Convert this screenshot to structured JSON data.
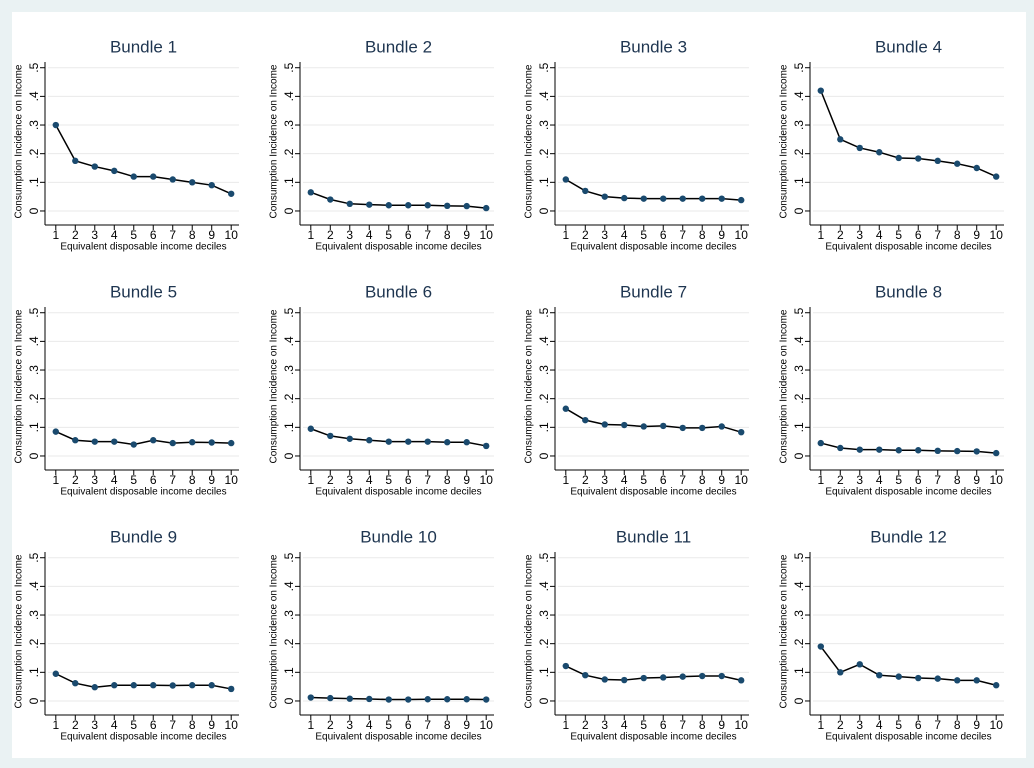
{
  "chart_data": [
    {
      "type": "line",
      "title": "Bundle 1",
      "y_label": "Consumption Incidence on Income",
      "x_label": "Equivalent disposable income deciles",
      "x": [
        1,
        2,
        3,
        4,
        5,
        6,
        7,
        8,
        9,
        10
      ],
      "xlim": [
        0.6,
        10.4
      ],
      "ylim": [
        -0.035,
        0.52
      ],
      "yticks": [
        0,
        {
          "value": 0.1,
          "label": ".1"
        },
        {
          "value": 0.2,
          "label": ".2"
        },
        {
          "value": 0.3,
          "label": ".3"
        },
        {
          "value": 0.4,
          "label": ".4"
        },
        {
          "value": 0.5,
          "label": ".5"
        }
      ],
      "grid": true,
      "color": "#1a4a6e",
      "values": [
        0.3,
        0.175,
        0.155,
        0.14,
        0.12,
        0.12,
        0.11,
        0.1,
        0.09,
        0.06
      ]
    },
    {
      "type": "line",
      "title": "Bundle 2",
      "y_label": "Consumption Incidence on Income",
      "x_label": "Equivalent disposable income deciles",
      "x": [
        1,
        2,
        3,
        4,
        5,
        6,
        7,
        8,
        9,
        10
      ],
      "xlim": [
        0.6,
        10.4
      ],
      "ylim": [
        -0.035,
        0.52
      ],
      "yticks": [
        0,
        {
          "value": 0.1,
          "label": ".1"
        },
        {
          "value": 0.2,
          "label": ".2"
        },
        {
          "value": 0.3,
          "label": ".3"
        },
        {
          "value": 0.4,
          "label": ".4"
        },
        {
          "value": 0.5,
          "label": ".5"
        }
      ],
      "grid": true,
      "color": "#1a4a6e",
      "values": [
        0.065,
        0.04,
        0.025,
        0.022,
        0.02,
        0.02,
        0.02,
        0.018,
        0.017,
        0.01
      ]
    },
    {
      "type": "line",
      "title": "Bundle 3",
      "y_label": "Consumption Incidence on Income",
      "x_label": "Equivalent disposable income deciles",
      "x": [
        1,
        2,
        3,
        4,
        5,
        6,
        7,
        8,
        9,
        10
      ],
      "xlim": [
        0.6,
        10.4
      ],
      "ylim": [
        -0.035,
        0.52
      ],
      "yticks": [
        0,
        {
          "value": 0.1,
          "label": ".1"
        },
        {
          "value": 0.2,
          "label": ".2"
        },
        {
          "value": 0.3,
          "label": ".3"
        },
        {
          "value": 0.4,
          "label": ".4"
        },
        {
          "value": 0.5,
          "label": ".5"
        }
      ],
      "grid": true,
      "color": "#1a4a6e",
      "values": [
        0.11,
        0.07,
        0.05,
        0.045,
        0.043,
        0.043,
        0.043,
        0.043,
        0.043,
        0.038
      ]
    },
    {
      "type": "line",
      "title": "Bundle 4",
      "y_label": "Consumption Incidence on Income",
      "x_label": "Equivalent disposable income deciles",
      "x": [
        1,
        2,
        3,
        4,
        5,
        6,
        7,
        8,
        9,
        10
      ],
      "xlim": [
        0.6,
        10.4
      ],
      "ylim": [
        -0.035,
        0.52
      ],
      "yticks": [
        0,
        {
          "value": 0.1,
          "label": ".1"
        },
        {
          "value": 0.2,
          "label": ".2"
        },
        {
          "value": 0.3,
          "label": ".3"
        },
        {
          "value": 0.4,
          "label": ".4"
        },
        {
          "value": 0.5,
          "label": ".5"
        }
      ],
      "grid": true,
      "color": "#1a4a6e",
      "values": [
        0.42,
        0.25,
        0.22,
        0.205,
        0.185,
        0.183,
        0.175,
        0.165,
        0.15,
        0.12
      ]
    },
    {
      "type": "line",
      "title": "Bundle 5",
      "y_label": "Consumption Incidence on Income",
      "x_label": "Equivalent disposable income deciles",
      "x": [
        1,
        2,
        3,
        4,
        5,
        6,
        7,
        8,
        9,
        10
      ],
      "xlim": [
        0.6,
        10.4
      ],
      "ylim": [
        -0.035,
        0.52
      ],
      "yticks": [
        0,
        {
          "value": 0.1,
          "label": ".1"
        },
        {
          "value": 0.2,
          "label": ".2"
        },
        {
          "value": 0.3,
          "label": ".3"
        },
        {
          "value": 0.4,
          "label": ".4"
        },
        {
          "value": 0.5,
          "label": ".5"
        }
      ],
      "grid": true,
      "color": "#1a4a6e",
      "values": [
        0.085,
        0.055,
        0.05,
        0.05,
        0.04,
        0.055,
        0.045,
        0.048,
        0.047,
        0.045
      ]
    },
    {
      "type": "line",
      "title": "Bundle 6",
      "y_label": "Consumption Incidence on Income",
      "x_label": "Equivalent disposable income deciles",
      "x": [
        1,
        2,
        3,
        4,
        5,
        6,
        7,
        8,
        9,
        10
      ],
      "xlim": [
        0.6,
        10.4
      ],
      "ylim": [
        -0.035,
        0.52
      ],
      "yticks": [
        0,
        {
          "value": 0.1,
          "label": ".1"
        },
        {
          "value": 0.2,
          "label": ".2"
        },
        {
          "value": 0.3,
          "label": ".3"
        },
        {
          "value": 0.4,
          "label": ".4"
        },
        {
          "value": 0.5,
          "label": ".5"
        }
      ],
      "grid": true,
      "color": "#1a4a6e",
      "values": [
        0.095,
        0.07,
        0.06,
        0.055,
        0.05,
        0.05,
        0.05,
        0.048,
        0.048,
        0.035
      ]
    },
    {
      "type": "line",
      "title": "Bundle 7",
      "y_label": "Consumption Incidence on Income",
      "x_label": "Equivalent disposable income deciles",
      "x": [
        1,
        2,
        3,
        4,
        5,
        6,
        7,
        8,
        9,
        10
      ],
      "xlim": [
        0.6,
        10.4
      ],
      "ylim": [
        -0.035,
        0.52
      ],
      "yticks": [
        0,
        {
          "value": 0.1,
          "label": ".1"
        },
        {
          "value": 0.2,
          "label": ".2"
        },
        {
          "value": 0.3,
          "label": ".3"
        },
        {
          "value": 0.4,
          "label": ".4"
        },
        {
          "value": 0.5,
          "label": ".5"
        }
      ],
      "grid": true,
      "color": "#1a4a6e",
      "values": [
        0.165,
        0.125,
        0.11,
        0.108,
        0.103,
        0.105,
        0.098,
        0.098,
        0.103,
        0.083
      ]
    },
    {
      "type": "line",
      "title": "Bundle 8",
      "y_label": "Consumption Incidence on Income",
      "x_label": "Equivalent disposable income deciles",
      "x": [
        1,
        2,
        3,
        4,
        5,
        6,
        7,
        8,
        9,
        10
      ],
      "xlim": [
        0.6,
        10.4
      ],
      "ylim": [
        -0.035,
        0.52
      ],
      "yticks": [
        0,
        {
          "value": 0.1,
          "label": ".1"
        },
        {
          "value": 0.2,
          "label": ".2"
        },
        {
          "value": 0.3,
          "label": ".3"
        },
        {
          "value": 0.4,
          "label": ".4"
        },
        {
          "value": 0.5,
          "label": ".5"
        }
      ],
      "grid": true,
      "color": "#1a4a6e",
      "values": [
        0.045,
        0.028,
        0.022,
        0.022,
        0.02,
        0.02,
        0.018,
        0.017,
        0.016,
        0.01
      ]
    },
    {
      "type": "line",
      "title": "Bundle 9",
      "y_label": "Consumption Incidence on Income",
      "x_label": "Equivalent disposable income deciles",
      "x": [
        1,
        2,
        3,
        4,
        5,
        6,
        7,
        8,
        9,
        10
      ],
      "xlim": [
        0.6,
        10.4
      ],
      "ylim": [
        -0.035,
        0.52
      ],
      "yticks": [
        0,
        {
          "value": 0.1,
          "label": ".1"
        },
        {
          "value": 0.2,
          "label": ".2"
        },
        {
          "value": 0.3,
          "label": ".3"
        },
        {
          "value": 0.4,
          "label": ".4"
        },
        {
          "value": 0.5,
          "label": ".5"
        }
      ],
      "grid": true,
      "color": "#1a4a6e",
      "values": [
        0.095,
        0.062,
        0.048,
        0.055,
        0.055,
        0.055,
        0.054,
        0.055,
        0.055,
        0.042
      ]
    },
    {
      "type": "line",
      "title": "Bundle 10",
      "y_label": "Consumption Incidence on Income",
      "x_label": "Equivalent disposable income deciles",
      "x": [
        1,
        2,
        3,
        4,
        5,
        6,
        7,
        8,
        9,
        10
      ],
      "xlim": [
        0.6,
        10.4
      ],
      "ylim": [
        -0.035,
        0.52
      ],
      "yticks": [
        0,
        {
          "value": 0.1,
          "label": ".1"
        },
        {
          "value": 0.2,
          "label": ".2"
        },
        {
          "value": 0.3,
          "label": ".3"
        },
        {
          "value": 0.4,
          "label": ".4"
        },
        {
          "value": 0.5,
          "label": ".5"
        }
      ],
      "grid": true,
      "color": "#1a4a6e",
      "values": [
        0.012,
        0.01,
        0.008,
        0.007,
        0.005,
        0.005,
        0.006,
        0.006,
        0.006,
        0.005
      ]
    },
    {
      "type": "line",
      "title": "Bundle 11",
      "y_label": "Consumption Incidence on Income",
      "x_label": "Equivalent disposable income deciles",
      "x": [
        1,
        2,
        3,
        4,
        5,
        6,
        7,
        8,
        9,
        10
      ],
      "xlim": [
        0.6,
        10.4
      ],
      "ylim": [
        -0.035,
        0.52
      ],
      "yticks": [
        0,
        {
          "value": 0.1,
          "label": ".1"
        },
        {
          "value": 0.2,
          "label": ".2"
        },
        {
          "value": 0.3,
          "label": ".3"
        },
        {
          "value": 0.4,
          "label": ".4"
        },
        {
          "value": 0.5,
          "label": ".5"
        }
      ],
      "grid": true,
      "color": "#1a4a6e",
      "values": [
        0.122,
        0.09,
        0.075,
        0.073,
        0.08,
        0.082,
        0.085,
        0.087,
        0.087,
        0.072
      ]
    },
    {
      "type": "line",
      "title": "Bundle 12",
      "y_label": "Consumption Incidence on Income",
      "x_label": "Equivalent disposable income deciles",
      "x": [
        1,
        2,
        3,
        4,
        5,
        6,
        7,
        8,
        9,
        10
      ],
      "xlim": [
        0.6,
        10.4
      ],
      "ylim": [
        -0.035,
        0.52
      ],
      "yticks": [
        0,
        {
          "value": 0.1,
          "label": ".1"
        },
        {
          "value": 0.2,
          "label": ".2"
        },
        {
          "value": 0.3,
          "label": ".3"
        },
        {
          "value": 0.4,
          "label": ".4"
        },
        {
          "value": 0.5,
          "label": ".5"
        }
      ],
      "grid": true,
      "color": "#1a4a6e",
      "values": [
        0.19,
        0.1,
        0.128,
        0.09,
        0.085,
        0.08,
        0.078,
        0.072,
        0.072,
        0.055
      ]
    }
  ]
}
